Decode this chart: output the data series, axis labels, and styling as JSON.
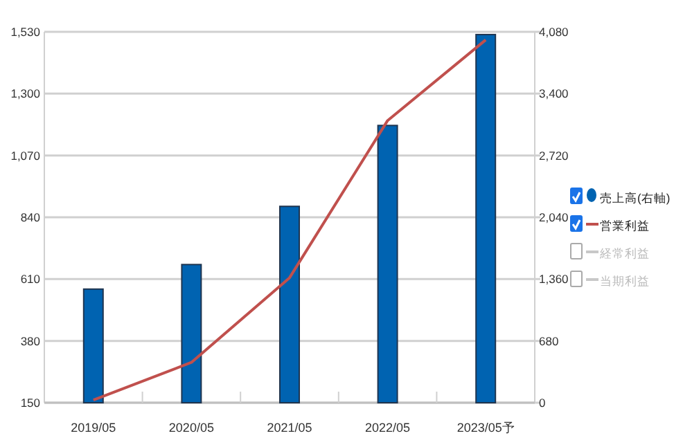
{
  "chart_data": {
    "type": "bar",
    "categories": [
      "2019/05",
      "2020/05",
      "2021/05",
      "2022/05",
      "2023/05予"
    ],
    "series": [
      {
        "name": "売上高(右軸)",
        "axis": "y2",
        "color": "#0063b1",
        "values": [
          1250,
          1520,
          2160,
          3050,
          4050
        ]
      },
      {
        "name": "営業利益",
        "type": "line",
        "color": "#c0504d",
        "values": [
          160,
          300,
          615,
          1200,
          1500
        ]
      },
      {
        "name": "経常利益",
        "type": "line",
        "color": "#c8c8c8",
        "values": [
          null,
          null,
          null,
          null,
          null
        ]
      },
      {
        "name": "当期利益",
        "type": "line",
        "color": "#c8c8c8",
        "values": [
          null,
          null,
          null,
          null,
          null
        ]
      }
    ],
    "ylim": [
      150,
      1530
    ],
    "yticks": [
      150,
      380,
      610,
      840,
      {
        "value": 1070,
        "label": "1,070"
      },
      {
        "value": 1300,
        "label": "1,300"
      },
      {
        "value": 1530,
        "label": "1,530"
      }
    ],
    "y2lim": [
      0,
      4080
    ],
    "y2ticks": [
      0,
      680,
      {
        "value": 1360,
        "label": "1,360"
      },
      {
        "value": 2040,
        "label": "2,040"
      },
      {
        "value": 2720,
        "label": "2,720"
      },
      {
        "value": 3400,
        "label": "3,400"
      },
      {
        "value": 4080,
        "label": "4,080"
      }
    ],
    "grid": "y",
    "legend": "right"
  }
}
